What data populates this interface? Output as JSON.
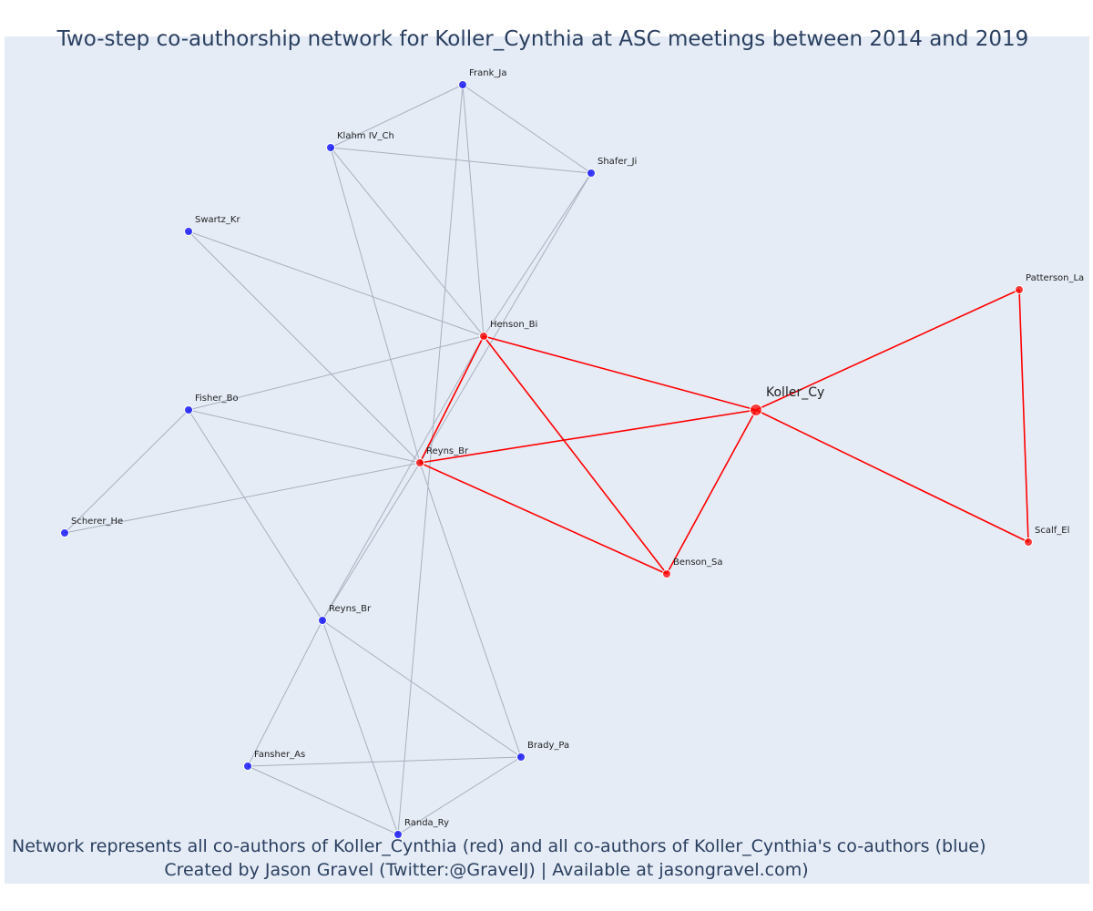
{
  "title": "Two-step co-authorship network for Koller_Cynthia at ASC meetings between 2014 and 2019",
  "annotations": [
    "Network represents all co-authors of Koller_Cynthia (red) and all co-authors of Koller_Cynthia's co-authors (blue)",
    "Created by Jason Gravel (Twitter:@GravelJ) | Available at jasongravel.com)"
  ],
  "colors": {
    "background": "#e5ecf6",
    "first_step": "#ff0000",
    "second_step": "#0000ff",
    "blue_edge": "#a9b0be",
    "text": "#2a3f5f"
  },
  "nodes": [
    {
      "id": "koller",
      "label": "Koller_Cy",
      "group": "ego"
    },
    {
      "id": "patterson",
      "label": "Patterson_La",
      "group": "first"
    },
    {
      "id": "scalf",
      "label": "Scalf_El",
      "group": "first"
    },
    {
      "id": "benson",
      "label": "Benson_Sa",
      "group": "first"
    },
    {
      "id": "henson",
      "label": "Henson_Bi",
      "group": "first"
    },
    {
      "id": "reyns1",
      "label": "Reyns_Br",
      "group": "first"
    },
    {
      "id": "frank",
      "label": "Frank_Ja",
      "group": "second"
    },
    {
      "id": "klahm",
      "label": "Klahm IV_Ch",
      "group": "second"
    },
    {
      "id": "shafer",
      "label": "Shafer_Ji",
      "group": "second"
    },
    {
      "id": "swartz",
      "label": "Swartz_Kr",
      "group": "second"
    },
    {
      "id": "fisher",
      "label": "Fisher_Bo",
      "group": "second"
    },
    {
      "id": "scherer",
      "label": "Scherer_He",
      "group": "second"
    },
    {
      "id": "reyns2",
      "label": "Reyns_Br",
      "group": "second"
    },
    {
      "id": "fansher",
      "label": "Fansher_As",
      "group": "second"
    },
    {
      "id": "brady",
      "label": "Brady_Pa",
      "group": "second"
    },
    {
      "id": "randa",
      "label": "Randa_Ry",
      "group": "second"
    }
  ],
  "edges": [
    {
      "source": "koller",
      "target": "patterson",
      "group": "first"
    },
    {
      "source": "koller",
      "target": "scalf",
      "group": "first"
    },
    {
      "source": "koller",
      "target": "benson",
      "group": "first"
    },
    {
      "source": "koller",
      "target": "henson",
      "group": "first"
    },
    {
      "source": "koller",
      "target": "reyns1",
      "group": "first"
    },
    {
      "source": "patterson",
      "target": "scalf",
      "group": "first"
    },
    {
      "source": "henson",
      "target": "reyns1",
      "group": "first"
    },
    {
      "source": "henson",
      "target": "benson",
      "group": "first"
    },
    {
      "source": "reyns1",
      "target": "benson",
      "group": "first"
    },
    {
      "source": "frank",
      "target": "klahm",
      "group": "second"
    },
    {
      "source": "frank",
      "target": "shafer",
      "group": "second"
    },
    {
      "source": "klahm",
      "target": "shafer",
      "group": "second"
    },
    {
      "source": "frank",
      "target": "henson",
      "group": "second"
    },
    {
      "source": "frank",
      "target": "randa",
      "group": "second"
    },
    {
      "source": "klahm",
      "target": "henson",
      "group": "second"
    },
    {
      "source": "klahm",
      "target": "reyns1",
      "group": "second"
    },
    {
      "source": "shafer",
      "target": "henson",
      "group": "second"
    },
    {
      "source": "shafer",
      "target": "reyns1",
      "group": "second"
    },
    {
      "source": "swartz",
      "target": "henson",
      "group": "second"
    },
    {
      "source": "swartz",
      "target": "reyns1",
      "group": "second"
    },
    {
      "source": "fisher",
      "target": "henson",
      "group": "second"
    },
    {
      "source": "fisher",
      "target": "reyns1",
      "group": "second"
    },
    {
      "source": "fisher",
      "target": "scherer",
      "group": "second"
    },
    {
      "source": "fisher",
      "target": "reyns2",
      "group": "second"
    },
    {
      "source": "scherer",
      "target": "reyns1",
      "group": "second"
    },
    {
      "source": "reyns2",
      "target": "henson",
      "group": "second"
    },
    {
      "source": "reyns2",
      "target": "reyns1",
      "group": "second"
    },
    {
      "source": "reyns2",
      "target": "fansher",
      "group": "second"
    },
    {
      "source": "reyns2",
      "target": "brady",
      "group": "second"
    },
    {
      "source": "reyns2",
      "target": "randa",
      "group": "second"
    },
    {
      "source": "reyns1",
      "target": "brady",
      "group": "second"
    },
    {
      "source": "fansher",
      "target": "brady",
      "group": "second"
    },
    {
      "source": "fansher",
      "target": "randa",
      "group": "second"
    },
    {
      "source": "brady",
      "target": "randa",
      "group": "second"
    }
  ]
}
